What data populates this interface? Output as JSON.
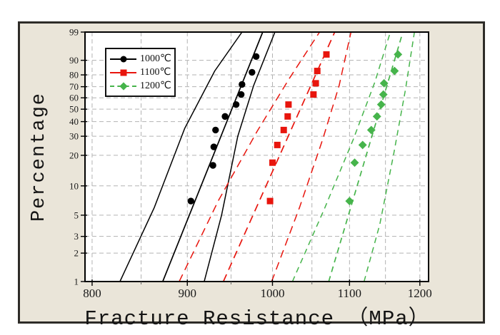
{
  "figure": {
    "background": "#ffffff",
    "panel_background": "#eae5d9",
    "panel_border_color": "#2e2c28",
    "plot_background": "#ffffff",
    "plot_border_color": "#000000"
  },
  "chart_data": {
    "type": "scatter",
    "title": "",
    "xlabel": "Fracture Resistance （MPa）",
    "ylabel": "Percentage",
    "x_scale": "log",
    "y_scale": "weibull-percent",
    "x_range": [
      793,
      1213
    ],
    "y_range": [
      1,
      99
    ],
    "x_ticks": [
      800,
      900,
      1000,
      1100,
      1200
    ],
    "x_minor_gridlines": [
      850,
      950,
      1050,
      1150
    ],
    "y_ticks": [
      99,
      90,
      80,
      70,
      60,
      50,
      40,
      30,
      20,
      10,
      5,
      3,
      2,
      1
    ],
    "grid": true,
    "grid_color": "#b3b3b3",
    "tick_label_color": "#1a1a1a",
    "legend_position": "top-left",
    "series": [
      {
        "name": "1000℃",
        "color": "#000000",
        "marker": "circle",
        "line_style": "solid",
        "legend_line": "solid",
        "points": [
          [
            904,
            7
          ],
          [
            929,
            16
          ],
          [
            930,
            24
          ],
          [
            932,
            34
          ],
          [
            943,
            44
          ],
          [
            956,
            54
          ],
          [
            962,
            63
          ],
          [
            963,
            72
          ],
          [
            975,
            82
          ],
          [
            980,
            92
          ]
        ],
        "fit_line": [
          [
            873,
            1
          ],
          [
            988,
            99
          ]
        ],
        "confidence_bounds": [
          [
            [
              828,
              1
            ],
            [
              864,
              6
            ],
            [
              897,
              35
            ],
            [
              931,
              83
            ],
            [
              963,
              99
            ]
          ],
          [
            [
              919,
              1
            ],
            [
              939,
              5
            ],
            [
              958,
              30
            ],
            [
              977,
              71
            ],
            [
              1003,
              99
            ]
          ]
        ]
      },
      {
        "name": "1100℃",
        "color": "#e8150d",
        "marker": "square",
        "line_style": "dashed",
        "legend_line": "solid",
        "points": [
          [
            997,
            7
          ],
          [
            1000,
            17
          ],
          [
            1006,
            25
          ],
          [
            1014,
            34
          ],
          [
            1019,
            44
          ],
          [
            1020,
            54
          ],
          [
            1052,
            63
          ],
          [
            1055,
            73
          ],
          [
            1057,
            83
          ],
          [
            1069,
            93
          ]
        ],
        "fit_line": [
          [
            941,
            1
          ],
          [
            1080,
            99
          ]
        ],
        "confidence_bounds": [
          [
            [
              891,
              1
            ],
            [
              935,
              7
            ],
            [
              981,
              33
            ],
            [
              1021,
              77
            ],
            [
              1060,
              99
            ]
          ],
          [
            [
              999,
              1
            ],
            [
              1034,
              6
            ],
            [
              1064,
              28
            ],
            [
              1086,
              71
            ],
            [
              1102,
              99
            ]
          ]
        ]
      },
      {
        "name": "1200℃",
        "color": "#46b44b",
        "marker": "diamond",
        "line_style": "dashed",
        "legend_line": "dashed",
        "points": [
          [
            1100,
            7
          ],
          [
            1107,
            17
          ],
          [
            1118,
            25
          ],
          [
            1130,
            34
          ],
          [
            1138,
            44
          ],
          [
            1144,
            54
          ],
          [
            1147,
            63
          ],
          [
            1148,
            73
          ],
          [
            1163,
            83
          ],
          [
            1168,
            93
          ]
        ],
        "fit_line": [
          [
            1072,
            1
          ],
          [
            1175,
            99
          ]
        ],
        "confidence_bounds": [
          [
            [
              1025,
              1
            ],
            [
              1067,
              6
            ],
            [
              1105,
              28
            ],
            [
              1135,
              74
            ],
            [
              1157,
              99
            ]
          ],
          [
            [
              1120,
              1
            ],
            [
              1142,
              4
            ],
            [
              1162,
              21
            ],
            [
              1179,
              68
            ],
            [
              1192,
              99
            ]
          ]
        ]
      }
    ]
  }
}
